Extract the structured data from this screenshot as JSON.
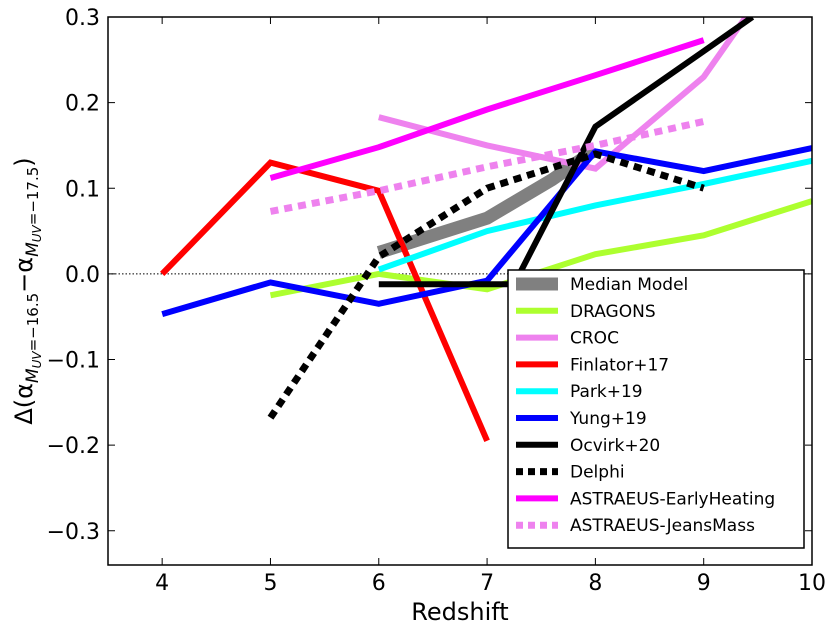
{
  "chart_data": {
    "type": "line",
    "xlabel": "Redshift",
    "ylabel": {
      "prefix": "Δ(α",
      "sub1_main": "M",
      "sub1_sub": "UV",
      "sub1_rest": "=−16.5",
      "minus": "−α",
      "sub2_main": "M",
      "sub2_sub": "UV",
      "sub2_rest": "=−17.5",
      "suffix": ")"
    },
    "xlim": [
      3.5,
      10.0
    ],
    "ylim": [
      -0.34,
      0.3
    ],
    "x_ticks": [
      4,
      5,
      6,
      7,
      8,
      9,
      10
    ],
    "x_tick_labels": [
      "4",
      "5",
      "6",
      "7",
      "8",
      "9",
      "10"
    ],
    "y_ticks": [
      -0.3,
      -0.2,
      -0.1,
      0.0,
      0.1,
      0.2,
      0.3
    ],
    "y_tick_labels": [
      "−0.3",
      "−0.2",
      "−0.1",
      "0.0",
      "0.1",
      "0.2",
      "0.3"
    ],
    "grid": false,
    "reference_line": {
      "y": 0.0,
      "style": "dotted"
    },
    "legend_position": "lower-right",
    "series": [
      {
        "name": "Median Model",
        "color": "#808080",
        "style": "band",
        "x": [
          6,
          7,
          7.6,
          8
        ],
        "y": [
          0.025,
          0.065,
          0.11,
          0.145
        ]
      },
      {
        "name": "DRAGONS",
        "color": "#adff2f",
        "style": "solid",
        "x": [
          5,
          6,
          7,
          8,
          9,
          10
        ],
        "y": [
          -0.025,
          0.0,
          -0.018,
          0.023,
          0.045,
          0.085
        ]
      },
      {
        "name": "CROC",
        "color": "#ee82ee",
        "style": "solid",
        "x": [
          6,
          7,
          8,
          9,
          9.5
        ],
        "y": [
          0.183,
          0.15,
          0.123,
          0.23,
          0.32
        ]
      },
      {
        "name": "Finlator+17",
        "color": "#ff0000",
        "style": "solid",
        "x": [
          4,
          5,
          6,
          7
        ],
        "y": [
          0.0,
          0.13,
          0.097,
          -0.195
        ]
      },
      {
        "name": "Park+19",
        "color": "#00ffff",
        "style": "solid",
        "x": [
          6,
          7,
          8,
          9,
          10
        ],
        "y": [
          0.005,
          0.05,
          0.08,
          0.105,
          0.132
        ]
      },
      {
        "name": "Yung+19",
        "color": "#0000ff",
        "style": "solid",
        "x": [
          4,
          5,
          6,
          7,
          8,
          9,
          10
        ],
        "y": [
          -0.047,
          -0.01,
          -0.035,
          -0.008,
          0.143,
          0.12,
          0.147
        ]
      },
      {
        "name": "Ocvirk+20",
        "color": "#000000",
        "style": "solid",
        "x": [
          6,
          7.25,
          8,
          9,
          9.45
        ],
        "y": [
          -0.012,
          -0.012,
          0.172,
          0.26,
          0.3
        ]
      },
      {
        "name": "Delphi",
        "color": "#000000",
        "style": "dotted",
        "x": [
          5,
          6,
          7,
          8,
          9
        ],
        "y": [
          -0.168,
          0.02,
          0.1,
          0.14,
          0.1
        ]
      },
      {
        "name": "ASTRAEUS-EarlyHeating",
        "color": "#ff00ff",
        "style": "solid",
        "x": [
          5,
          6,
          7,
          8,
          9
        ],
        "y": [
          0.112,
          0.148,
          0.192,
          0.232,
          0.273
        ]
      },
      {
        "name": "ASTRAEUS-JeansMass",
        "color": "#ee82ee",
        "style": "dotted",
        "x": [
          5,
          6,
          7,
          8,
          9
        ],
        "y": [
          0.073,
          0.097,
          0.125,
          0.15,
          0.178
        ]
      }
    ]
  }
}
